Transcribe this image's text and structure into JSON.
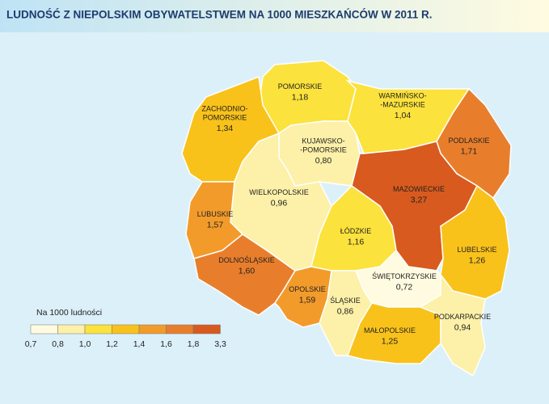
{
  "title": "LUDNOŚĆ Z NIEPOLSKIM OBYWATELSTWEM NA 1000 MIESZKAŃCÓW W 2011 R.",
  "regions": [
    {
      "name": [
        "POMORSKIE"
      ],
      "value": 1.18,
      "value_label": "1,18"
    },
    {
      "name": [
        "ZACHODNIO-",
        "POMORSKIE"
      ],
      "value": 1.34,
      "value_label": "1,34"
    },
    {
      "name": [
        "WARMIŃSKO-",
        "-MAZURSKIE"
      ],
      "value": 1.04,
      "value_label": "1,04"
    },
    {
      "name": [
        "PODLASKIE"
      ],
      "value": 1.71,
      "value_label": "1,71"
    },
    {
      "name": [
        "KUJAWSKO-",
        "-POMORSKIE"
      ],
      "value": 0.8,
      "value_label": "0,80"
    },
    {
      "name": [
        "WIELKOPOLSKIE"
      ],
      "value": 0.96,
      "value_label": "0,96"
    },
    {
      "name": [
        "LUBUSKIE"
      ],
      "value": 1.57,
      "value_label": "1,57"
    },
    {
      "name": [
        "MAZOWIECKIE"
      ],
      "value": 3.27,
      "value_label": "3,27"
    },
    {
      "name": [
        "ŁÓDZKIE"
      ],
      "value": 1.16,
      "value_label": "1,16"
    },
    {
      "name": [
        "LUBELSKIE"
      ],
      "value": 1.26,
      "value_label": "1,26"
    },
    {
      "name": [
        "DOLNOŚLĄSKIE"
      ],
      "value": 1.6,
      "value_label": "1,60"
    },
    {
      "name": [
        "OPOLSKIE"
      ],
      "value": 1.59,
      "value_label": "1,59"
    },
    {
      "name": [
        "ŚLĄSKIE"
      ],
      "value": 0.86,
      "value_label": "0,86"
    },
    {
      "name": [
        "ŚWIĘTOKRZYSKIE"
      ],
      "value": 0.72,
      "value_label": "0,72"
    },
    {
      "name": [
        "MAŁOPOLSKIE"
      ],
      "value": 1.25,
      "value_label": "1,25"
    },
    {
      "name": [
        "PODKARPACKIE"
      ],
      "value": 0.94,
      "value_label": "0,94"
    }
  ],
  "legend": {
    "title": "Na 1000 ludności",
    "breaks": [
      {
        "value": 0.7,
        "label": "0,7"
      },
      {
        "value": 0.8,
        "label": "0,8"
      },
      {
        "value": 1.0,
        "label": "1,0"
      },
      {
        "value": 1.2,
        "label": "1,2"
      },
      {
        "value": 1.4,
        "label": "1,4"
      },
      {
        "value": 1.6,
        "label": "1,6"
      },
      {
        "value": 1.8,
        "label": "1,8"
      },
      {
        "value": 3.3,
        "label": "3,3"
      }
    ],
    "colors": [
      "#fffbe0",
      "#fdf0a8",
      "#fce23c",
      "#f9c21a",
      "#f29b2b",
      "#e87e2c",
      "#d85a1e"
    ]
  }
}
